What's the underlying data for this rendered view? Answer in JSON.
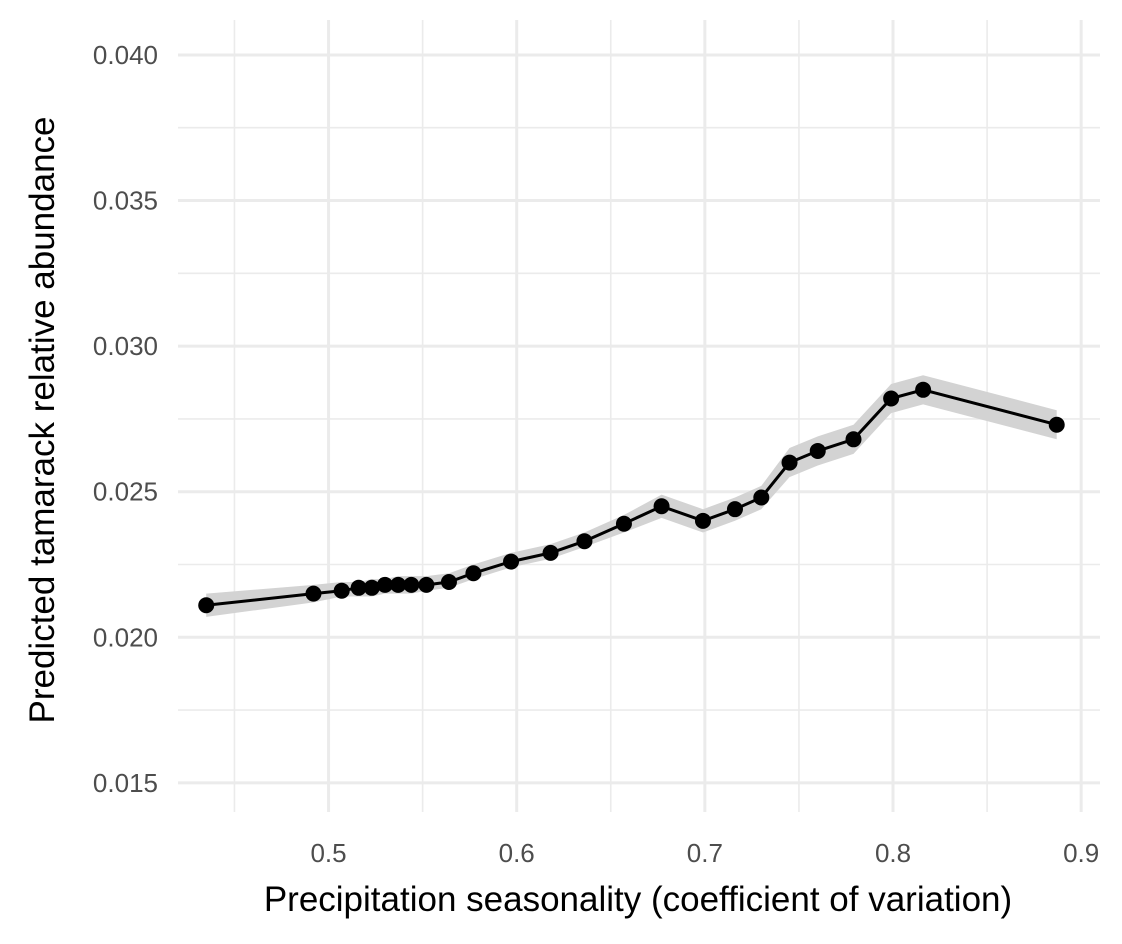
{
  "chart_data": {
    "type": "line",
    "xlabel": "Precipitation seasonality (coefficient of variation)",
    "ylabel": "Predicted tamarack relative abundance",
    "xlim": [
      0.42,
      0.91
    ],
    "ylim": [
      0.014,
      0.0412
    ],
    "x_ticks": [
      0.5,
      0.6,
      0.7,
      0.8,
      0.9
    ],
    "x_tick_labels": [
      "0.5",
      "0.6",
      "0.7",
      "0.8",
      "0.9"
    ],
    "x_minor_ticks": [
      0.45,
      0.55,
      0.65,
      0.75,
      0.85
    ],
    "y_ticks": [
      0.015,
      0.02,
      0.025,
      0.03,
      0.035,
      0.04
    ],
    "y_tick_labels": [
      "0.015",
      "0.020",
      "0.025",
      "0.030",
      "0.035",
      "0.040"
    ],
    "y_minor_ticks": [
      0.0175,
      0.0225,
      0.0275,
      0.0325,
      0.0375
    ],
    "grid": true,
    "legend": "none",
    "series": [
      {
        "x": [
          0.435,
          0.492,
          0.507,
          0.516,
          0.523,
          0.53,
          0.537,
          0.544,
          0.552,
          0.564,
          0.577,
          0.597,
          0.618,
          0.636,
          0.657,
          0.677,
          0.699,
          0.716,
          0.73,
          0.745,
          0.76,
          0.779,
          0.799,
          0.816,
          0.887
        ],
        "y": [
          0.0211,
          0.0215,
          0.0216,
          0.0217,
          0.0217,
          0.0218,
          0.0218,
          0.0218,
          0.0218,
          0.0219,
          0.0222,
          0.0226,
          0.0229,
          0.0233,
          0.0239,
          0.0245,
          0.024,
          0.0244,
          0.0248,
          0.026,
          0.0264,
          0.0268,
          0.0282,
          0.0285,
          0.0273
        ],
        "ci_low": [
          0.0207,
          0.0212,
          0.0214,
          0.0214,
          0.0214,
          0.0215,
          0.0215,
          0.0215,
          0.0216,
          0.0217,
          0.022,
          0.0224,
          0.0227,
          0.0231,
          0.0236,
          0.0241,
          0.0236,
          0.024,
          0.0244,
          0.0255,
          0.0259,
          0.0263,
          0.0277,
          0.028,
          0.0268
        ],
        "ci_high": [
          0.0215,
          0.0218,
          0.0219,
          0.0219,
          0.022,
          0.022,
          0.0221,
          0.0221,
          0.0221,
          0.0222,
          0.0225,
          0.0229,
          0.0232,
          0.0236,
          0.0242,
          0.0249,
          0.0244,
          0.0248,
          0.0252,
          0.0265,
          0.0269,
          0.0273,
          0.0287,
          0.029,
          0.0278
        ]
      }
    ],
    "colors": {
      "line": "#000000",
      "points": "#000000",
      "ribbon": "#d3d3d3",
      "grid": "#ebebeb",
      "tick_text": "#4d4d4d",
      "title_text": "#000000"
    }
  }
}
